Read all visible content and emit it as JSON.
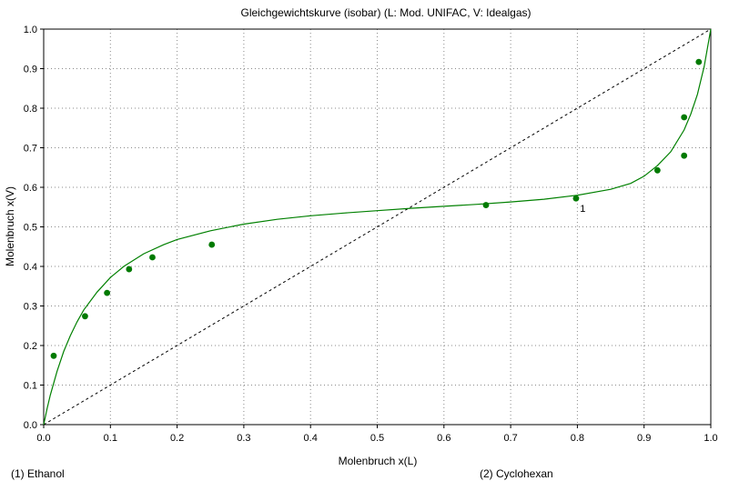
{
  "chart_data": {
    "type": "line",
    "title": "Gleichgewichtskurve  (isobar)  (L: Mod. UNIFAC, V: Idealgas)",
    "xlabel": "Molenbruch x(L)",
    "ylabel": "Molenbruch x(V)",
    "xlim": [
      0.0,
      1.0
    ],
    "ylim": [
      0.0,
      1.0
    ],
    "xticks": [
      "0.0",
      "0.1",
      "0.2",
      "0.3",
      "0.4",
      "0.5",
      "0.6",
      "0.7",
      "0.8",
      "0.9",
      "1.0"
    ],
    "yticks": [
      "0.0",
      "0.1",
      "0.2",
      "0.3",
      "0.4",
      "0.5",
      "0.6",
      "0.7",
      "0.8",
      "0.9",
      "1.0"
    ],
    "grid": true,
    "components": {
      "left": "(1) Ethanol",
      "right": "(2) Cyclohexan"
    },
    "series": [
      {
        "kind": "curve",
        "color": "#008000",
        "x": [
          0.0,
          0.005,
          0.01,
          0.02,
          0.03,
          0.04,
          0.05,
          0.06,
          0.08,
          0.1,
          0.12,
          0.15,
          0.18,
          0.2,
          0.25,
          0.3,
          0.35,
          0.4,
          0.45,
          0.5,
          0.55,
          0.6,
          0.65,
          0.7,
          0.75,
          0.8,
          0.85,
          0.88,
          0.9,
          0.92,
          0.94,
          0.96,
          0.97,
          0.98,
          0.99,
          1.0
        ],
        "y": [
          0.0,
          0.04,
          0.075,
          0.135,
          0.185,
          0.225,
          0.26,
          0.29,
          0.335,
          0.372,
          0.4,
          0.432,
          0.455,
          0.468,
          0.49,
          0.507,
          0.519,
          0.528,
          0.535,
          0.541,
          0.547,
          0.552,
          0.557,
          0.563,
          0.57,
          0.58,
          0.595,
          0.61,
          0.628,
          0.655,
          0.69,
          0.745,
          0.785,
          0.835,
          0.905,
          1.0
        ]
      },
      {
        "kind": "diagonal",
        "style": "dashed",
        "color": "#000000",
        "x": [
          0.0,
          1.0
        ],
        "y": [
          0.0,
          1.0
        ]
      },
      {
        "kind": "points",
        "color": "#007a00",
        "x": [
          0.015,
          0.062,
          0.095,
          0.128,
          0.163,
          0.252,
          0.663,
          0.798,
          0.92,
          0.96,
          0.96,
          0.982
        ],
        "y": [
          0.174,
          0.274,
          0.333,
          0.393,
          0.423,
          0.455,
          0.555,
          0.572,
          0.643,
          0.68,
          0.777,
          0.917
        ]
      }
    ],
    "annotations": [
      {
        "text": "1",
        "x": 0.808,
        "y": 0.538
      }
    ]
  }
}
